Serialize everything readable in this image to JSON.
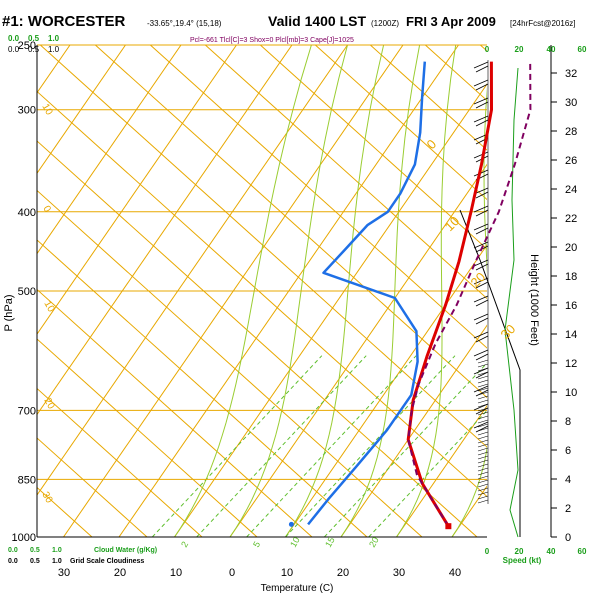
{
  "header": {
    "station": "#1: WORCESTER",
    "coords": "-33.65°,19.4° (15,18)",
    "valid": "Valid 1400 LST",
    "utc": "(1200Z)",
    "date": "FRI 3 Apr 2009",
    "run": "[24hrFcst@2016z]",
    "params": "Pcl=-661 Tlcl[C]=3 Shox=0 Plcl[mb]=3 Cape[J]=1025"
  },
  "colors": {
    "isotherm": "#e8a800",
    "mixing": "#5fbf2e",
    "moist": "#9acd32",
    "temperature": "#dd0000",
    "dewpoint": "#1e6fe6",
    "parcel": "#800060",
    "height": "#000000",
    "grid_scale": "#1a9e1a"
  },
  "chart_data": {
    "type": "line",
    "title": "#1: WORCESTER Valid 1400 LST FRI 3 Apr 2009",
    "xlabel": "Temperature (C)",
    "ylabel": "P (hPa)",
    "y2label": "Height (1000 Feet)",
    "pressure_ticks": [
      250,
      300,
      400,
      500,
      700,
      850,
      1000
    ],
    "temperature_ticks": [
      30,
      20,
      10,
      0,
      10,
      20,
      30,
      40
    ],
    "height_ticks": [
      0,
      2,
      4,
      6,
      8,
      10,
      12,
      14,
      16,
      18,
      20,
      22,
      24,
      26,
      28,
      30,
      32
    ],
    "isotherm_labels": [
      "10",
      "0",
      "10",
      "20",
      "30"
    ],
    "left_isotherm_labels": [
      "10",
      "0",
      "10",
      "20",
      "30"
    ],
    "mixing_ratio_labels": [
      "2",
      "5",
      "10",
      "15",
      "20"
    ],
    "mixing_label": "Cloud Water (g/Kg)",
    "grid_label": "Grid Scale Cloudiness",
    "scale_top": [
      "0.0",
      "0.5",
      "1.0"
    ],
    "scale_bottom": [
      "0.0",
      "0.5",
      "1.0"
    ],
    "wind_axis_label": "Speed (kt)",
    "wind_axis_ticks": [
      "0",
      "20",
      "40",
      "60"
    ],
    "series": [
      {
        "name": "Temperature",
        "points": [
          [
            38,
            970
          ],
          [
            28,
            860
          ],
          [
            20,
            760
          ],
          [
            16,
            680
          ],
          [
            13,
            600
          ],
          [
            10,
            520
          ],
          [
            7,
            460
          ],
          [
            3,
            400
          ],
          [
            -1,
            350
          ],
          [
            -6,
            300
          ],
          [
            -12,
            262
          ]
        ]
      },
      {
        "name": "Dewpoint",
        "points": [
          [
            12.5,
            965
          ],
          [
            13,
            900
          ],
          [
            14,
            820
          ],
          [
            15,
            740
          ],
          [
            15,
            670
          ],
          [
            12,
            610
          ],
          [
            8,
            560
          ],
          [
            0,
            510
          ],
          [
            -16,
            475
          ],
          [
            -15,
            445
          ],
          [
            -14,
            415
          ],
          [
            -12,
            400
          ],
          [
            -12,
            380
          ],
          [
            -13,
            350
          ],
          [
            -16,
            320
          ],
          [
            -20,
            290
          ],
          [
            -24,
            262
          ]
        ]
      },
      {
        "name": "Parcel",
        "points": [
          [
            38,
            970
          ],
          [
            26,
            840
          ],
          [
            20,
            760
          ],
          [
            17,
            700
          ],
          [
            15,
            650
          ],
          [
            13,
            580
          ],
          [
            12,
            520
          ],
          [
            10,
            460
          ],
          [
            8,
            400
          ],
          [
            5,
            350
          ],
          [
            1,
            300
          ],
          [
            -5,
            262
          ]
        ]
      }
    ],
    "surface_dewpoint": [
      18.5,
      965
    ]
  }
}
